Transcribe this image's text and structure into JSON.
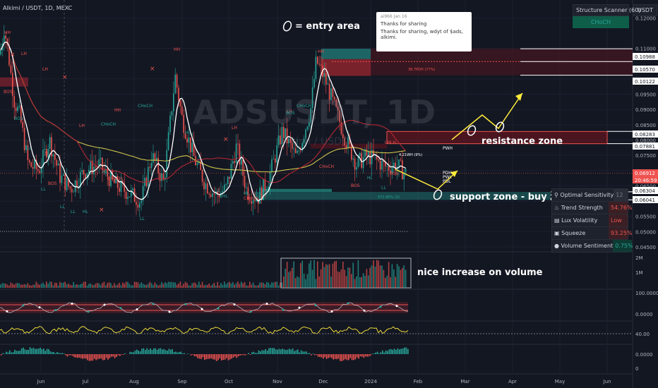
{
  "header": {
    "title": "Alkimi / USDT, 1D, MEXC",
    "currency_button": "USDT"
  },
  "watermark": {
    "symbol": "ADSUSDT, 1D",
    "name": "Alkimi / USDT"
  },
  "scanner": {
    "title": "Structure Scanner (60)",
    "value": "CHoCH"
  },
  "comment": {
    "user": "ai966",
    "date": "Jan 16",
    "lines": [
      "Thanks for sharing",
      "Thanks for sharing, wdyt of $ads,",
      "alkimi."
    ]
  },
  "annotations": {
    "entry_area": "= entry area",
    "resistance": "resistance zone",
    "support": "support zone - buy zone",
    "volume_note": "nice increase on volume"
  },
  "price_axis": {
    "ticks": [
      "0.12000",
      "0.11000",
      "0.10000",
      "0.09500",
      "0.09000",
      "0.08500",
      "0.08000",
      "0.07500",
      "0.07000",
      "0.06500",
      "0.06000",
      "0.05500",
      "0.05000",
      "0.04500"
    ],
    "highlighted": [
      {
        "value": "0.10988",
        "color": "#ffffff"
      },
      {
        "value": "0.10570",
        "color": "#ffffff"
      },
      {
        "value": "0.10122",
        "color": "#ffffff"
      },
      {
        "value": "0.08283",
        "color": "#ffffff"
      },
      {
        "value": "0.07881",
        "color": "#ffffff"
      },
      {
        "value": "0.06912",
        "color": "#ef5350"
      },
      {
        "value": "20:46:59",
        "color": "#ef5350"
      },
      {
        "value": "0.06304",
        "color": "#ffffff"
      },
      {
        "value": "0.06041",
        "color": "#ffffff"
      }
    ]
  },
  "volume_axis": {
    "ticks": [
      "2M",
      "1M"
    ]
  },
  "osc1_axis": {
    "ticks": [
      "100.0000",
      "0.0000"
    ]
  },
  "osc2_axis": {
    "ticks": [
      "40.00"
    ]
  },
  "osc3_axis": {
    "ticks": [
      "0.0000",
      "0"
    ]
  },
  "time_axis": {
    "labels": [
      "Jun",
      "Jul",
      "Aug",
      "Sep",
      "Oct",
      "Nov",
      "Dec",
      "2024",
      "Feb",
      "Mar",
      "Apr",
      "May",
      "Jun"
    ]
  },
  "structure_labels": [
    "HH",
    "HH",
    "HH",
    "HH",
    "CHoCH",
    "CHoCH",
    "LH",
    "LH",
    "LH",
    "LH",
    "LH",
    "LL",
    "LL",
    "LL",
    "LL",
    "LL",
    "LL",
    "LL",
    "HL",
    "HL",
    "HL",
    "HL",
    "HL",
    "HL",
    "BOS",
    "BOS",
    "BOS",
    "BOS",
    "BOS",
    "BOS",
    "CHoCH",
    "CHoCH",
    "CHoCH",
    "CHoCH",
    "LHLH",
    "PWH",
    "PDH",
    "PWL",
    "PDL"
  ],
  "zone_labels": {
    "fib_top": "38.7PDH (77%)",
    "fib_mid": "4.21WH (9%)",
    "fib_bot": "571.95% (3)"
  },
  "panel": {
    "rows": [
      {
        "icon": "pin-icon",
        "label": "Optimal Sensitivity",
        "value": "12",
        "color": "#787b86"
      },
      {
        "icon": "flame-icon",
        "label": "Trend Strength",
        "value": "54.76%",
        "color": "#ef5350"
      },
      {
        "icon": "chart-icon",
        "label": "Lux Volatility",
        "value": "Low",
        "color": "#ef5350"
      },
      {
        "icon": "squeeze-icon",
        "label": "Squeeze",
        "value": "93.25%",
        "color": "#ef5350"
      },
      {
        "icon": "drop-icon",
        "label": "Volume Sentiment",
        "value": "0.75%",
        "color": "#26a69a"
      }
    ]
  },
  "chart_data": {
    "type": "candlestick",
    "symbol": "Alkimi / USDT",
    "interval": "1D",
    "exchange": "MEXC",
    "x": [
      "Jun",
      "Jul",
      "Aug",
      "Sep",
      "Oct",
      "Nov",
      "Dec",
      "2024"
    ],
    "close_approx": [
      0.108,
      0.075,
      0.068,
      0.083,
      0.06,
      0.083,
      0.106,
      0.069
    ],
    "last_price": 0.06912,
    "ylim": [
      0.045,
      0.124
    ],
    "levels": [
      0.10988,
      0.1057,
      0.10122,
      0.08283,
      0.07881,
      0.06304,
      0.06041
    ],
    "colors": {
      "up": "#26a69a",
      "down": "#ef5350",
      "ma_fast": "#ffffff",
      "ma_mid": "#b22833",
      "ma_slow": "#cfc44a"
    }
  }
}
